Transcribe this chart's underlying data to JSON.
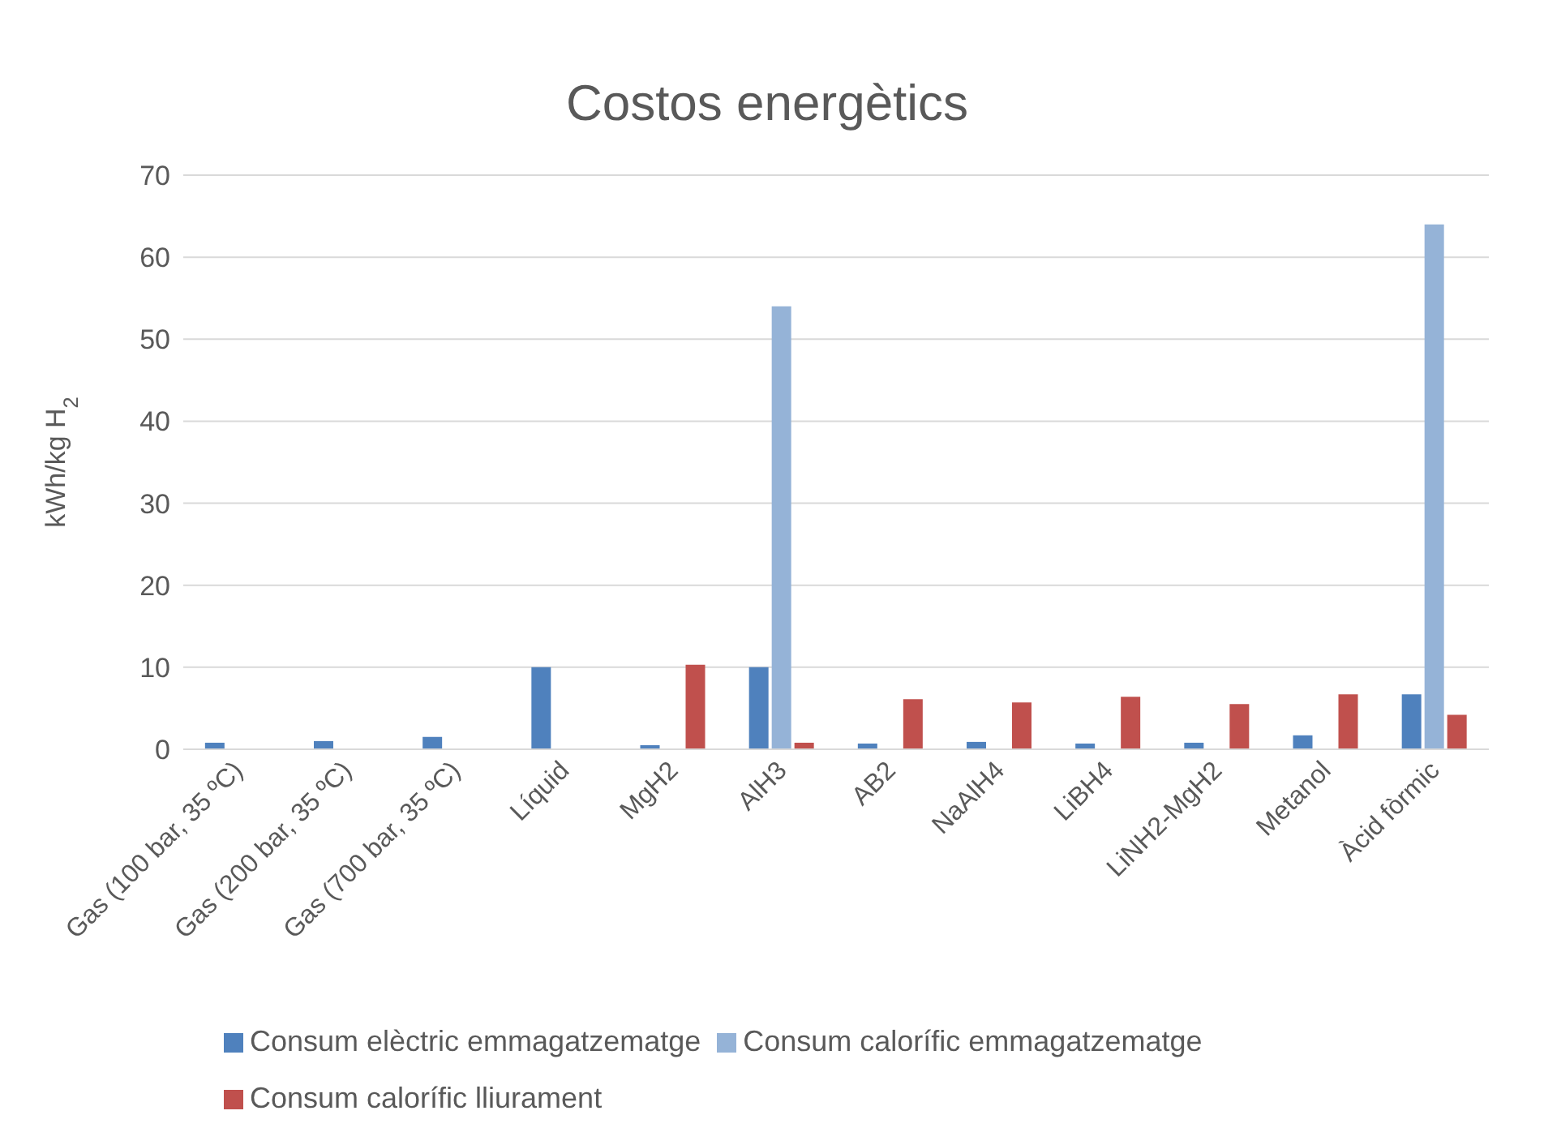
{
  "chart_data": {
    "type": "bar",
    "title": "Costos energètics",
    "ylabel": "kWh/kg H$_{2}$",
    "categories": [
      "Gas (100 bar, 35 ºC)",
      "Gas (200 bar, 35 ºC)",
      "Gas (700 bar, 35 ºC)",
      "Líquid",
      "MgH2",
      "AlH3",
      "AB2",
      "NaAlH4",
      "LiBH4",
      "LiNH2-MgH2",
      "Metanol",
      "Àcid fòrmic"
    ],
    "series": [
      {
        "name": "Consum elèctric emmagatzematge",
        "color": "#4f81bd",
        "values": [
          0.8,
          1.0,
          1.5,
          10,
          0.5,
          10,
          0.7,
          0.9,
          0.7,
          0.8,
          1.7,
          6.7
        ]
      },
      {
        "name": "Consum calorífic emmagatzematge",
        "color": "#95b3d7",
        "values": [
          null,
          null,
          null,
          null,
          null,
          54,
          null,
          null,
          null,
          null,
          null,
          64
        ]
      },
      {
        "name": "Consum calorífic lliurament",
        "color": "#c0504d",
        "values": [
          null,
          null,
          null,
          null,
          10.3,
          0.8,
          6.1,
          5.7,
          6.4,
          5.5,
          6.7,
          4.2
        ]
      }
    ],
    "ylim": [
      0,
      70
    ],
    "yticks": [
      0,
      10,
      20,
      30,
      40,
      50,
      60,
      70
    ],
    "grid": "y",
    "legend": "bottom"
  }
}
